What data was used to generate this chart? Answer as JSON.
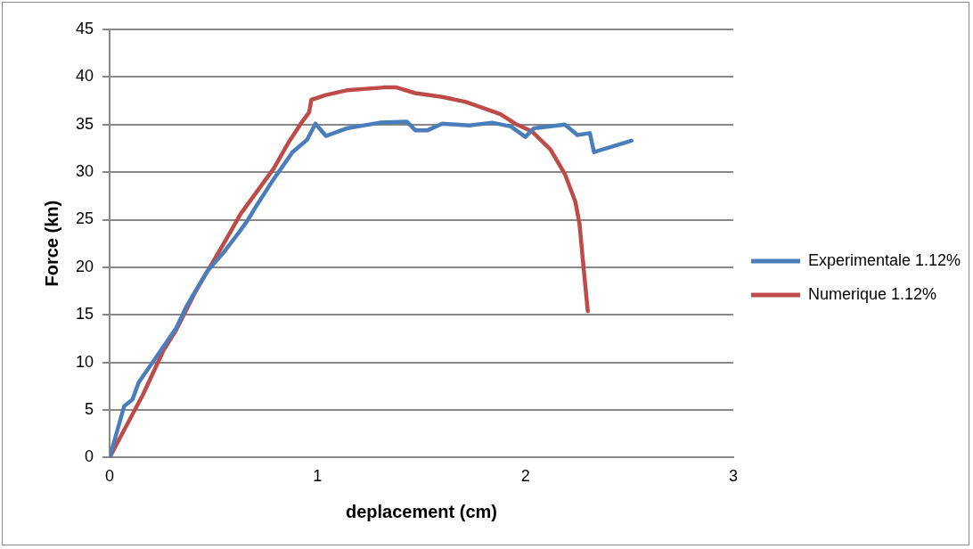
{
  "chart_data": {
    "type": "line",
    "xlabel": "deplacement (cm)",
    "ylabel": "Force (kn)",
    "xlim": [
      0,
      3
    ],
    "xticks": [
      0,
      1,
      2,
      3
    ],
    "ylim": [
      0,
      45
    ],
    "yticks": [
      0,
      5,
      10,
      15,
      20,
      25,
      30,
      35,
      40,
      45
    ],
    "grid": "y",
    "legend": "right",
    "marker": "none",
    "series": [
      {
        "name": "Experimentale 1.12%",
        "color": "#4a7ebb",
        "x": [
          0,
          0.07,
          0.11,
          0.14,
          0.21,
          0.32,
          0.37,
          0.47,
          0.55,
          0.62,
          0.66,
          0.71,
          0.79,
          0.88,
          0.95,
          0.99,
          1.04,
          1.14,
          1.3,
          1.43,
          1.47,
          1.53,
          1.6,
          1.73,
          1.84,
          1.93,
          2.0,
          2.04,
          2.19,
          2.25,
          2.31,
          2.33,
          2.51
        ],
        "values": [
          0,
          5.4,
          6.1,
          7.9,
          10.1,
          13.6,
          15.9,
          19.6,
          21.6,
          23.6,
          24.8,
          26.6,
          29.3,
          32.1,
          33.4,
          35.1,
          33.8,
          34.6,
          35.2,
          35.3,
          34.4,
          34.4,
          35.1,
          34.9,
          35.2,
          34.8,
          33.7,
          34.6,
          35.0,
          33.9,
          34.1,
          32.1,
          33.3
        ]
      },
      {
        "name": "Numerique 1.12%",
        "color": "#be4b48",
        "x": [
          0,
          0.06,
          0.16,
          0.26,
          0.32,
          0.41,
          0.49,
          0.56,
          0.63,
          0.69,
          0.79,
          0.86,
          0.92,
          0.96,
          0.97,
          1.04,
          1.14,
          1.32,
          1.38,
          1.47,
          1.6,
          1.71,
          1.79,
          1.88,
          1.95,
          2.03,
          2.12,
          2.19,
          2.24,
          2.26,
          2.28,
          2.3
        ],
        "values": [
          0,
          2.5,
          6.6,
          11.3,
          13.4,
          17.3,
          20.3,
          22.9,
          25.6,
          27.4,
          30.4,
          33.1,
          35.1,
          36.3,
          37.6,
          38.1,
          38.6,
          38.9,
          38.9,
          38.3,
          37.9,
          37.4,
          36.8,
          36.1,
          35.1,
          34.3,
          32.4,
          29.8,
          26.9,
          24.6,
          19.9,
          15.4
        ]
      }
    ]
  }
}
